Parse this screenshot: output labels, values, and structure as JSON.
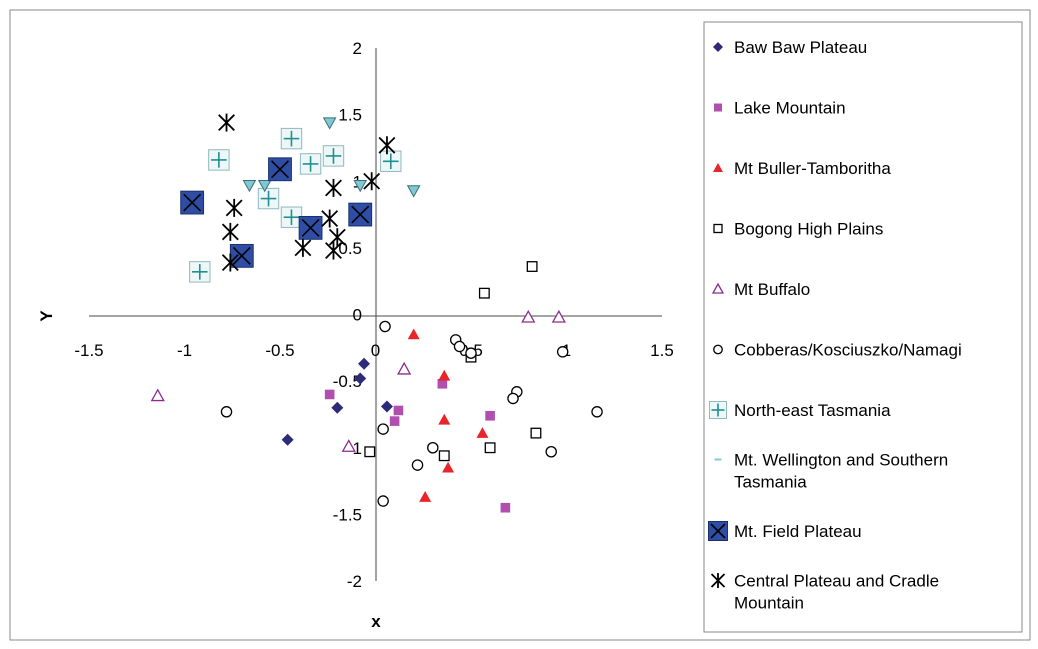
{
  "chart_data": {
    "type": "scatter",
    "xlabel": "x",
    "ylabel": "Y",
    "xlim": [
      -1.5,
      1.5
    ],
    "ylim": [
      -2,
      2
    ],
    "x_ticks": [
      "-1.5",
      "-1",
      "-0.5",
      "0",
      "0.5",
      "1",
      "1.5"
    ],
    "y_ticks": [
      "2",
      "1.5",
      "1",
      "0.5",
      "0",
      "-0.5",
      "-1",
      "-1.5",
      "-2"
    ],
    "legend_position": "right",
    "series": [
      {
        "name": "Baw Baw Plateau",
        "marker": "diamond",
        "color": "#2d2a7a",
        "points": [
          [
            -0.46,
            -0.94
          ],
          [
            -0.2,
            -0.7
          ],
          [
            -0.06,
            -0.37
          ],
          [
            -0.08,
            -0.48
          ],
          [
            0.06,
            -0.69
          ]
        ]
      },
      {
        "name": "Lake Mountain",
        "marker": "square",
        "color": "#b04fae",
        "points": [
          [
            -0.24,
            -0.6
          ],
          [
            0.12,
            -0.72
          ],
          [
            0.1,
            -0.8
          ],
          [
            0.35,
            -0.52
          ],
          [
            0.6,
            -0.76
          ],
          [
            0.68,
            -1.45
          ]
        ]
      },
      {
        "name": "Mt Buller-Tamboritha",
        "marker": "triangle",
        "color": "#e8262a",
        "points": [
          [
            0.2,
            -0.15
          ],
          [
            0.36,
            -0.46
          ],
          [
            0.36,
            -0.79
          ],
          [
            0.38,
            -1.15
          ],
          [
            0.26,
            -1.37
          ],
          [
            0.56,
            -0.89
          ]
        ]
      },
      {
        "name": "Bogong High Plains",
        "marker": "open-square",
        "color": "#000000",
        "points": [
          [
            0.57,
            0.16
          ],
          [
            0.82,
            0.36
          ],
          [
            0.5,
            -0.32
          ],
          [
            0.36,
            -1.06
          ],
          [
            0.6,
            -1.0
          ],
          [
            0.84,
            -0.89
          ],
          [
            -0.03,
            -1.03
          ]
        ]
      },
      {
        "name": "Mt Buffalo",
        "marker": "open-triangle",
        "color": "#8a2c8e",
        "points": [
          [
            -1.14,
            -0.61
          ],
          [
            0.15,
            -0.41
          ],
          [
            0.8,
            -0.02
          ],
          [
            0.96,
            -0.02
          ],
          [
            -0.14,
            -0.99
          ]
        ]
      },
      {
        "name": "Cobberas/Kosciuszko/Namagi",
        "marker": "open-circle",
        "color": "#000000",
        "points": [
          [
            0.05,
            -0.09
          ],
          [
            0.42,
            -0.19
          ],
          [
            0.44,
            -0.24
          ],
          [
            0.5,
            -0.29
          ],
          [
            0.74,
            -0.58
          ],
          [
            0.72,
            -0.63
          ],
          [
            0.98,
            -0.28
          ],
          [
            1.16,
            -0.73
          ],
          [
            0.92,
            -1.03
          ],
          [
            0.3,
            -1.0
          ],
          [
            0.22,
            -1.13
          ],
          [
            0.04,
            -1.4
          ],
          [
            0.04,
            -0.86
          ],
          [
            -0.78,
            -0.73
          ]
        ]
      },
      {
        "name": "North-east Tasmania",
        "marker": "boxed-plus",
        "color": "#1f8f8f",
        "points": [
          [
            -0.82,
            1.16
          ],
          [
            -0.44,
            1.32
          ],
          [
            -0.5,
            1.09
          ],
          [
            -0.34,
            1.13
          ],
          [
            -0.22,
            1.19
          ],
          [
            0.08,
            1.15
          ],
          [
            -0.56,
            0.87
          ],
          [
            -0.44,
            0.73
          ],
          [
            -0.92,
            0.32
          ]
        ]
      },
      {
        "name": "Mt. Wellington and Southern Tasmania",
        "marker": "down-triangle",
        "color": "#7fc8d4",
        "points": [
          [
            -0.24,
            1.44
          ],
          [
            -0.66,
            0.97
          ],
          [
            -0.58,
            0.97
          ],
          [
            -0.48,
            1.09
          ],
          [
            -0.08,
            0.97
          ],
          [
            0.2,
            0.93
          ]
        ]
      },
      {
        "name": "Mt. Field Plateau",
        "marker": "boxed-x",
        "color": "#2e4ea6",
        "points": [
          [
            -0.96,
            0.84
          ],
          [
            -0.5,
            1.09
          ],
          [
            -0.7,
            0.44
          ],
          [
            -0.34,
            0.65
          ],
          [
            -0.08,
            0.75
          ]
        ]
      },
      {
        "name": "Central Plateau and Cradle Mountain",
        "marker": "asterisk",
        "color": "#000000",
        "points": [
          [
            -0.78,
            1.44
          ],
          [
            -0.74,
            0.8
          ],
          [
            -0.76,
            0.62
          ],
          [
            -0.76,
            0.39
          ],
          [
            -0.38,
            0.5
          ],
          [
            -0.24,
            0.72
          ],
          [
            -0.22,
            0.95
          ],
          [
            -0.2,
            0.58
          ],
          [
            -0.22,
            0.48
          ],
          [
            -0.02,
            1.0
          ],
          [
            0.06,
            1.27
          ]
        ]
      }
    ]
  }
}
